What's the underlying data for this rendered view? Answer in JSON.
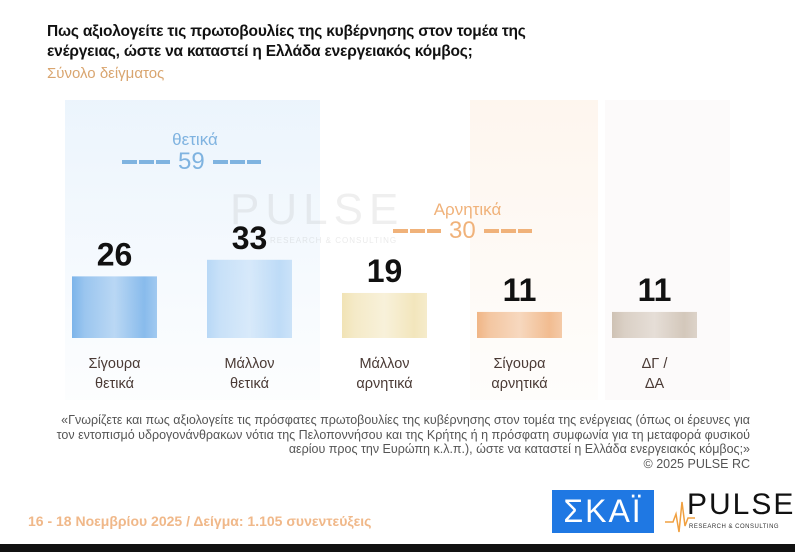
{
  "title": "Πως αξιολογείτε τις πρωτοβουλίες της κυβέρνησης στον τομέα της ενέργειας, ώστε να καταστεί η Ελλάδα ενεργειακός κόμβος;",
  "subtitle": "Σύνολο δείγματος",
  "watermark": {
    "text": "PULSE",
    "sub": "RESEARCH & CONSULTING"
  },
  "groups": {
    "positive": {
      "label": "θετικά",
      "total": "59",
      "color": "#7fb3e0"
    },
    "negative": {
      "label": "Αρνητικά",
      "total": "30",
      "color": "#f0b27a"
    }
  },
  "chart_data": {
    "type": "bar",
    "categories": [
      "Σίγουρα θετικά",
      "Μάλλον θετικά",
      "Μάλλον αρνητικά",
      "Σίγουρα αρνητικά",
      "ΔΓ / ΔΑ"
    ],
    "category_lines": [
      [
        "Σίγουρα",
        "θετικά"
      ],
      [
        "Μάλλον",
        "θετικά"
      ],
      [
        "Μάλλον",
        "αρνητικά"
      ],
      [
        "Σίγουρα",
        "αρνητικά"
      ],
      [
        "ΔΓ /",
        "ΔΑ"
      ]
    ],
    "values": [
      26,
      33,
      19,
      11,
      11
    ],
    "value_labels": [
      "26",
      "33",
      "19",
      "11",
      "11"
    ],
    "colors": [
      "#7cb4ea",
      "#b8d8f6",
      "#f1e3b5",
      "#f0b585",
      "#cfc2b4"
    ],
    "ylim": [
      0,
      100
    ],
    "grid": false,
    "legend": "none"
  },
  "note": {
    "question": "«Γνωρίζετε και πως αξιολογείτε τις πρόσφατες πρωτοβουλίες της κυβέρνησης στον τομέα της ενέργειας (όπως οι έρευνες για τον εντοπισμό υδρογονάνθρακων νότια της Πελοποννήσου και της Κρήτης ή η πρόσφατη συμφωνία για τη μεταφορά φυσικού αερίου προς την Ευρώπη κ.λ.π.), ώστε να καταστεί η Ελλάδα ενεργειακός κόμβος;»",
    "copyright": "©  2025  PULSE RC"
  },
  "footer": "16 - 18 Νοεμβρίου 2025  /  Δείγμα:  1.105 συνεντεύξεις",
  "logos": {
    "skai": "ΣΚΑΪ",
    "pulse": "PULSE",
    "pulse_sub": "RESEARCH & CONSULTING"
  }
}
